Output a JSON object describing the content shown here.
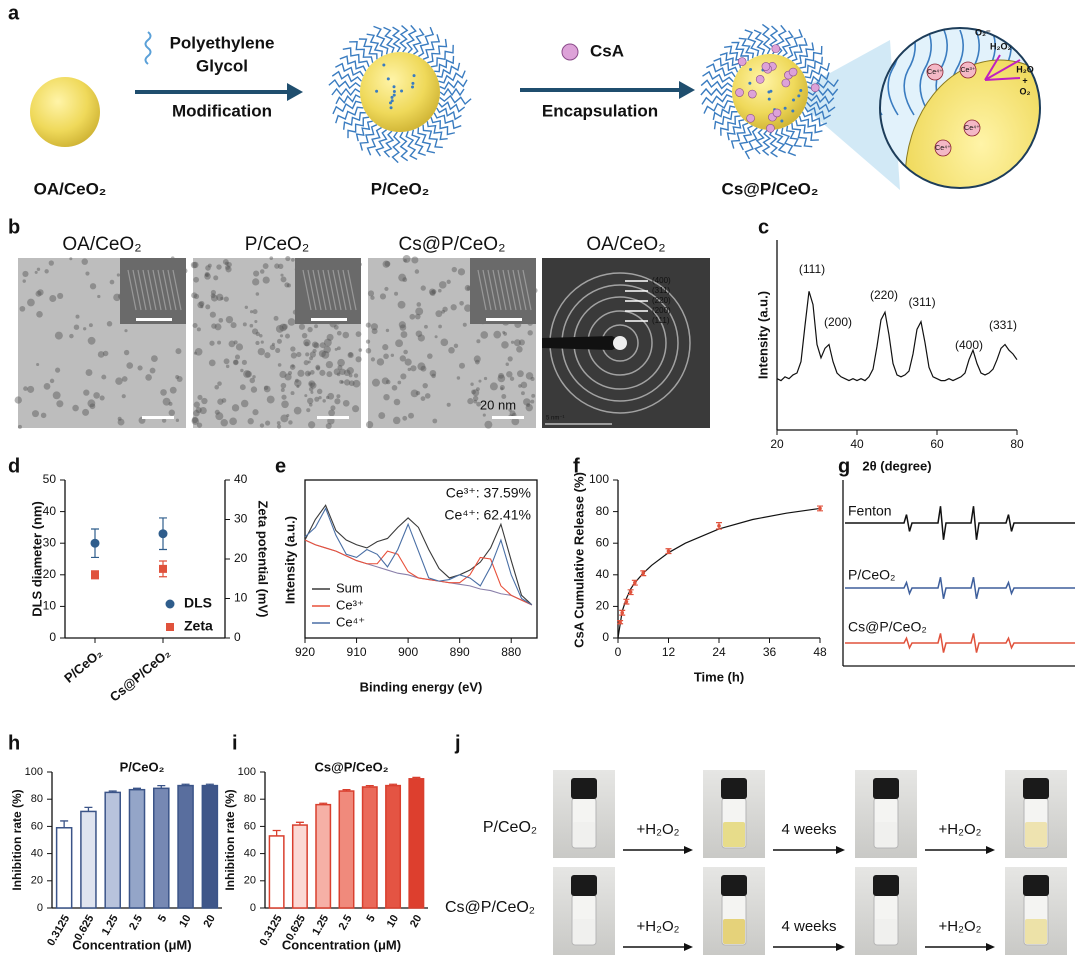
{
  "figure": {
    "panel_letters": [
      "a",
      "b",
      "c",
      "d",
      "e",
      "f",
      "g",
      "h",
      "i",
      "j"
    ],
    "a": {
      "start": "OA/CeO₂",
      "step1": [
        "Polyethylene",
        "Glycol"
      ],
      "step1_action": "Modification",
      "middle": "P/CeO₂",
      "step2": "CsA",
      "step2_action": "Encapsulation",
      "end": "Cs@P/CeO₂",
      "inset": {
        "superoxide": "O₂⁻",
        "peroxide": "H₂O₂",
        "water": "H₂O",
        "plus": "+",
        "oxygen": "O₂",
        "ce4": "Ce⁴⁺",
        "ce3": "Ce³⁺"
      }
    },
    "b": {
      "titles": [
        "OA/CeO₂",
        "P/CeO₂",
        "Cs@P/CeO₂",
        "OA/CeO₂"
      ],
      "scale_bar": "20 nm",
      "rings": [
        "(400)",
        "(311)",
        "(220)",
        "(200)",
        "(111)"
      ],
      "saed_scale": "5 nm⁻¹"
    },
    "g": {
      "labels": [
        "Fenton",
        "P/CeO₂",
        "Cs@P/CeO₂"
      ]
    },
    "j": {
      "rows": [
        "P/CeO₂",
        "Cs@P/CeO₂"
      ],
      "steps": [
        "+H₂O₂",
        "4 weeks",
        "+H₂O₂"
      ]
    }
  },
  "chart_data": [
    {
      "type": "line",
      "x_label": "2θ (degree)",
      "y_label": "Intensity (a.u.)",
      "x": [
        20,
        21,
        22,
        23,
        24,
        25,
        26,
        27,
        28,
        29,
        30,
        31,
        32,
        33,
        34,
        35,
        36,
        37,
        38,
        39,
        40,
        41,
        42,
        43,
        44,
        45,
        46,
        47,
        48,
        49,
        50,
        51,
        52,
        53,
        54,
        55,
        56,
        57,
        58,
        59,
        60,
        61,
        62,
        63,
        64,
        65,
        66,
        67,
        68,
        69,
        70,
        71,
        72,
        73,
        74,
        75,
        76,
        77,
        78,
        79,
        80
      ],
      "series": [
        {
          "color": "#111111",
          "values": [
            27,
            26,
            28,
            27,
            29,
            30,
            36,
            55,
            73,
            66,
            45,
            38,
            43,
            45,
            36,
            30,
            28,
            27,
            26,
            27,
            26,
            27,
            26,
            28,
            32,
            44,
            58,
            62,
            50,
            35,
            29,
            28,
            29,
            31,
            40,
            53,
            57,
            46,
            33,
            28,
            27,
            26,
            26,
            27,
            26,
            27,
            28,
            30,
            37,
            42,
            35,
            30,
            29,
            30,
            32,
            37,
            43,
            45,
            42,
            40,
            37
          ]
        }
      ],
      "xlim": [
        20,
        80
      ],
      "xticks": [
        20,
        40,
        60,
        80
      ],
      "ylim": [
        0,
        100
      ],
      "peak_labels": [
        "(111)",
        "(200)",
        "(220)",
        "(311)",
        "(400)",
        "(331)"
      ]
    },
    {
      "type": "dot",
      "y_label": "DLS diameter (nm)",
      "y2_label": "Zeta potential (mV)",
      "categories": [
        "P/CeO₂",
        "Cs@P/CeO₂"
      ],
      "series": [
        {
          "name": "DLS",
          "color": "#2f5d8c",
          "marker": "circle",
          "values": [
            30,
            33
          ],
          "errors": [
            4.5,
            5
          ]
        },
        {
          "name": "Zeta",
          "color": "#e0523c",
          "marker": "square",
          "axis": "y2",
          "values": [
            16,
            17.5
          ],
          "errors": [
            1,
            2
          ]
        }
      ],
      "ylim": [
        0,
        50
      ],
      "yticks": [
        0,
        10,
        20,
        30,
        40,
        50
      ],
      "y2lim": [
        0,
        40
      ],
      "y2ticks": [
        0,
        10,
        20,
        30,
        40
      ],
      "legend": "lower right"
    },
    {
      "type": "line",
      "x_label": "Binding energy (eV)",
      "y_label": "Intensity (a.u.)",
      "x": [
        920,
        918,
        916,
        914,
        912,
        910,
        908,
        906,
        904,
        902,
        900,
        898,
        896,
        894,
        892,
        890,
        888,
        886,
        884,
        882,
        880,
        878,
        876
      ],
      "series": [
        {
          "color": "#8a80aa",
          "values": [
            62,
            59,
            57,
            55,
            52,
            49,
            47,
            45,
            43,
            41,
            40,
            38,
            37,
            36,
            35,
            34,
            33,
            31,
            30,
            28,
            27,
            24,
            21
          ]
        },
        {
          "name": "Sum",
          "color": "#3a3a3a",
          "values": [
            62,
            75,
            84,
            68,
            62,
            59,
            57,
            61,
            63,
            70,
            76,
            70,
            56,
            44,
            38,
            40,
            43,
            48,
            57,
            72,
            49,
            27,
            21
          ]
        },
        {
          "name": "Ce³⁺",
          "color": "#e8503a",
          "values": [
            62,
            59,
            57,
            55,
            52,
            49,
            47,
            47,
            55,
            53,
            42,
            38,
            37,
            36,
            35,
            35,
            40,
            51,
            50,
            33,
            27,
            24,
            21
          ]
        },
        {
          "name": "Ce⁴⁺",
          "color": "#4a6fa5",
          "values": [
            64,
            70,
            82,
            65,
            53,
            51,
            56,
            53,
            45,
            56,
            72,
            55,
            38,
            36,
            37,
            40,
            38,
            33,
            45,
            62,
            40,
            25,
            21
          ]
        }
      ],
      "xlim": [
        920,
        875
      ],
      "xticks": [
        920,
        910,
        900,
        890,
        880
      ],
      "ylim": [
        0,
        100
      ],
      "legend": "lower left",
      "annotations": [
        "Ce³⁺: 37.59%",
        "Ce⁴⁺: 62.41%"
      ]
    },
    {
      "type": "line",
      "x_label": "Time (h)",
      "y_label": "CsA Cumulative Release (%)",
      "series": [
        {
          "color": "#111111",
          "x": [
            0,
            1,
            2,
            3,
            4,
            6,
            8,
            12,
            16,
            24,
            32,
            40,
            48
          ],
          "values": [
            0,
            17,
            25,
            31,
            35,
            41,
            46,
            54,
            60,
            69,
            75,
            79,
            82
          ]
        },
        {
          "color": "#e0523c",
          "marker": "errorbar",
          "x": [
            0.5,
            1,
            2,
            3,
            4,
            6,
            12,
            24,
            48
          ],
          "values": [
            10,
            16,
            23,
            29,
            35,
            41,
            55,
            71,
            82
          ],
          "errors": [
            1,
            1.5,
            1.5,
            1.5,
            1.5,
            1.5,
            1.5,
            2,
            1.5
          ]
        }
      ],
      "xlim": [
        0,
        48
      ],
      "xticks": [
        0,
        12,
        24,
        36,
        48
      ],
      "ylim": [
        0,
        100
      ],
      "yticks": [
        0,
        20,
        40,
        60,
        80,
        100
      ]
    },
    {
      "type": "bar",
      "title": "P/CeO₂",
      "y_label": "Inhibition rate (%)",
      "x_label": "Concentration (μM)",
      "categories": [
        "0.3125",
        "0.625",
        "1.25",
        "2.5",
        "5",
        "10",
        "20"
      ],
      "values": [
        59,
        71,
        85,
        87,
        88,
        90,
        90
      ],
      "errors": [
        5,
        3,
        1,
        1,
        2,
        1,
        1
      ],
      "colors": [
        "#ffffff",
        "#dfe4f0",
        "#b8c3dc",
        "#94a5c8",
        "#7688b3",
        "#596e9e",
        "#3f5689"
      ],
      "edge_color": "#3b5488",
      "ylim": [
        0,
        100
      ],
      "yticks": [
        0,
        20,
        40,
        60,
        80,
        100
      ]
    },
    {
      "type": "bar",
      "title": "Cs@P/CeO₂",
      "y_label": "Inhibition rate (%)",
      "x_label": "Concentration (μM)",
      "categories": [
        "0.3125",
        "0.625",
        "1.25",
        "2.5",
        "5",
        "10",
        "20"
      ],
      "values": [
        53,
        61,
        76,
        86,
        89,
        90,
        95
      ],
      "errors": [
        4,
        2,
        1,
        1,
        1,
        1,
        1
      ],
      "colors": [
        "#ffffff",
        "#fbd9d4",
        "#f6b0a6",
        "#f08a7c",
        "#ea6a5a",
        "#e45443",
        "#dd3f2e"
      ],
      "edge_color": "#d93f2e",
      "ylim": [
        0,
        100
      ],
      "yticks": [
        0,
        20,
        40,
        60,
        80,
        100
      ]
    }
  ]
}
